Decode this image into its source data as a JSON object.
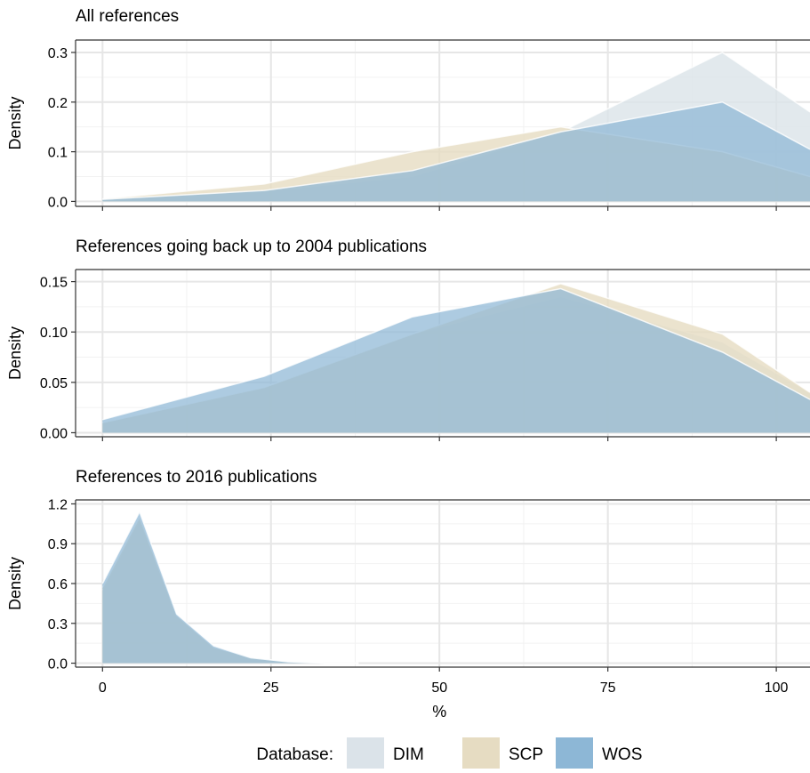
{
  "chart_data": {
    "type": "area",
    "x_label": "%",
    "x_ticks": [
      0,
      25,
      50,
      75,
      100
    ],
    "xlim": [
      -4,
      105
    ],
    "legend": {
      "title": "Database:",
      "position": "bottom",
      "entries": [
        {
          "name": "DIM",
          "color": "#dbe3e9"
        },
        {
          "name": "SCP",
          "color": "#e6dcc2"
        },
        {
          "name": "WOS",
          "color": "#8db7d6"
        }
      ]
    },
    "panels": [
      {
        "title": "All references",
        "ylabel": "Density",
        "ylim": [
          -0.01,
          0.325
        ],
        "y_ticks": [
          "0.0",
          "0.1",
          "0.2",
          "0.3"
        ],
        "y_tick_values": [
          0,
          0.1,
          0.2,
          0.3
        ],
        "x": [
          0,
          24,
          46,
          68,
          92,
          105
        ],
        "series": [
          {
            "name": "DIM",
            "values": [
              0.004,
              0.02,
              0.05,
              0.14,
              0.3,
              0.18
            ]
          },
          {
            "name": "SCP",
            "values": [
              0.005,
              0.035,
              0.1,
              0.15,
              0.1,
              0.05
            ]
          },
          {
            "name": "WOS",
            "values": [
              0.004,
              0.022,
              0.062,
              0.14,
              0.2,
              0.105
            ]
          }
        ]
      },
      {
        "title": "References going back up to 2004 publications",
        "ylabel": "Density",
        "ylim": [
          -0.004,
          0.162
        ],
        "y_ticks": [
          "0.00",
          "0.05",
          "0.10",
          "0.15"
        ],
        "y_tick_values": [
          0,
          0.05,
          0.1,
          0.15
        ],
        "x": [
          0,
          24,
          46,
          68,
          92,
          105
        ],
        "series": [
          {
            "name": "DIM",
            "values": [
              0.01,
              0.045,
              0.098,
              0.135,
              0.09,
              0.04
            ]
          },
          {
            "name": "SCP",
            "values": [
              0.01,
              0.045,
              0.098,
              0.148,
              0.098,
              0.04
            ]
          },
          {
            "name": "WOS",
            "values": [
              0.013,
              0.056,
              0.115,
              0.143,
              0.08,
              0.033
            ]
          }
        ]
      },
      {
        "title": "References to 2016 publications",
        "ylabel": "Density",
        "ylim": [
          -0.03,
          1.23
        ],
        "y_ticks": [
          "0.0",
          "0.3",
          "0.6",
          "0.9",
          "1.2"
        ],
        "y_tick_values": [
          0,
          0.3,
          0.6,
          0.9,
          1.2
        ],
        "x": [
          0,
          5.5,
          11,
          16.5,
          22,
          27.5,
          33,
          38
        ],
        "series": [
          {
            "name": "DIM",
            "values": [
              0.55,
              1.08,
              0.36,
              0.12,
              0.04,
              0.01,
              0.0,
              0.0
            ]
          },
          {
            "name": "SCP",
            "values": [
              0.57,
              1.1,
              0.36,
              0.12,
              0.04,
              0.01,
              0.0,
              0.0
            ]
          },
          {
            "name": "WOS",
            "values": [
              0.6,
              1.14,
              0.37,
              0.13,
              0.04,
              0.01,
              0.0,
              0.0
            ]
          }
        ]
      }
    ]
  }
}
